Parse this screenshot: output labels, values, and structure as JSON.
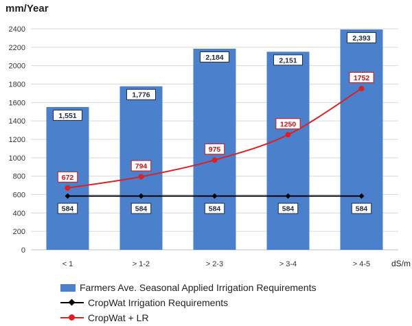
{
  "unit_label": "mm/Year",
  "x_unit": "dS/m",
  "chart_data": {
    "type": "bar",
    "categories": [
      "< 1",
      "> 1-2",
      "> 2-3",
      "> 3-4",
      "> 4-5"
    ],
    "ylim": [
      0,
      2400
    ],
    "yticks": [
      0,
      200,
      400,
      600,
      800,
      1000,
      1200,
      1400,
      1600,
      1800,
      2000,
      2200,
      2400
    ],
    "grid": true,
    "legend_position": "bottom",
    "series": [
      {
        "name": "Farmers Ave. Seasonal Applied Irrigation Requirements",
        "type": "bar",
        "values": [
          1551,
          1776,
          2184,
          2151,
          2393
        ],
        "labels": [
          "1,551",
          "1,776",
          "2,184",
          "2,151",
          "2,393"
        ],
        "color": "#4a80cc"
      },
      {
        "name": "CropWat Irrigation Requirements",
        "type": "line",
        "values": [
          584,
          584,
          584,
          584,
          584
        ],
        "labels": [
          "584",
          "584",
          "584",
          "584",
          "584"
        ],
        "color": "#000000"
      },
      {
        "name": "CropWat + LR",
        "type": "line",
        "values": [
          672,
          794,
          975,
          1250,
          1752
        ],
        "labels": [
          "672",
          "794",
          "975",
          "1250",
          "1752"
        ],
        "color": "#e02020"
      }
    ]
  }
}
